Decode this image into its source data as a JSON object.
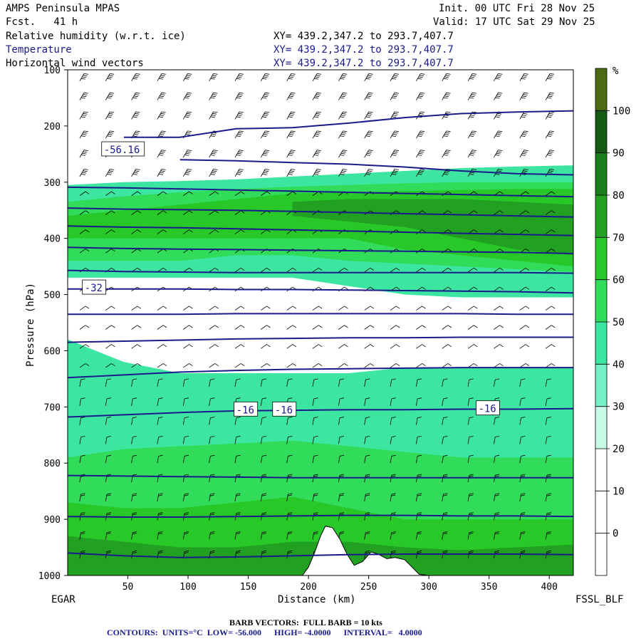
{
  "header": {
    "model": "AMPS Peninsula MPAS",
    "fcst": "Fcst.   41 h",
    "init": "Init. 00 UTC Fri 28 Nov 25",
    "valid": "Valid: 17 UTC Sat 29 Nov 25",
    "fields": [
      {
        "name": "Relative humidity (w.r.t. ice)",
        "xy": "XY= 439.2,347.2 to 293.7,407.7"
      },
      {
        "name": "Temperature",
        "xy": "XY= 439.2,347.2 to 293.7,407.7"
      },
      {
        "name": "Horizontal wind vectors",
        "xy": "XY= 439.2,347.2 to 293.7,407.7"
      }
    ]
  },
  "footer": {
    "left_station": "EGAR",
    "right_station": "FSSL_BLF",
    "barb_note": "BARB VECTORS:  FULL BARB = 10 kts",
    "contour_note": "CONTOURS:  UNITS=°C  LOW= -56.000      HIGH= -4.0000      INTERVAL=   4.0000"
  },
  "colors": {
    "contour": "#1a1a8c",
    "terrain": "#ffffff",
    "rh_bins": [
      "#ffffff",
      "#ffffff",
      "#ffffff",
      "#ffffff",
      "#ffffff",
      "#ffffff",
      "#c8fae6",
      "#78f0c8",
      "#3ce6a0",
      "#30dc5a",
      "#28c828",
      "#22a022",
      "#1b7d1b",
      "#145a14",
      "#4a6a14"
    ]
  },
  "chart_data": {
    "type": "heatmap",
    "xlabel": "Distance (km)",
    "ylabel": "Pressure (hPa)",
    "xlim": [
      0,
      420
    ],
    "ylim": [
      1000,
      100
    ],
    "x_ticks": [
      50,
      100,
      150,
      200,
      250,
      300,
      350,
      400
    ],
    "y_ticks": [
      100,
      200,
      300,
      400,
      500,
      600,
      700,
      800,
      900,
      1000
    ],
    "colorbar": {
      "unit": "%",
      "levels": [
        0,
        10,
        20,
        30,
        40,
        50,
        60,
        70,
        80,
        90,
        100
      ]
    },
    "temperature_contours": [
      {
        "label": "-56.16",
        "p": [
          null,
          220,
          220,
          205,
          203,
          195,
          185,
          178,
          175,
          173
        ]
      },
      {
        "label": "",
        "p": [
          null,
          null,
          260,
          262,
          265,
          268,
          273,
          280,
          285,
          287
        ]
      },
      {
        "label": "",
        "p": [
          309,
          310,
          312,
          314,
          316,
          318,
          320,
          322,
          324,
          326
        ]
      },
      {
        "label": "",
        "p": [
          346,
          348,
          349,
          350,
          352,
          354,
          356,
          358,
          360,
          362
        ]
      },
      {
        "label": "",
        "p": [
          378,
          380,
          381,
          383,
          385,
          387,
          389,
          391,
          393,
          395
        ]
      },
      {
        "label": "",
        "p": [
          416,
          418,
          419,
          420,
          421,
          422,
          423,
          424,
          425,
          427
        ]
      },
      {
        "label": "",
        "p": [
          457,
          459,
          460,
          461,
          461,
          461,
          461,
          461,
          461,
          462
        ]
      },
      {
        "label": "-32",
        "p": [
          490,
          490,
          490,
          491,
          491,
          492,
          493,
          494,
          495,
          497
        ]
      },
      {
        "label": "",
        "p": [
          535,
          535,
          535,
          534,
          534,
          534,
          534,
          534,
          535,
          535
        ]
      },
      {
        "label": "",
        "p": [
          585,
          583,
          581,
          579,
          578,
          577,
          577,
          576,
          576,
          576
        ]
      },
      {
        "label": "",
        "p": [
          648,
          643,
          638,
          635,
          633,
          632,
          631,
          630,
          630,
          630
        ]
      },
      {
        "label": "-16",
        "p": [
          718,
          714,
          710,
          707,
          706,
          705,
          705,
          704,
          704,
          703
        ]
      },
      {
        "label": "",
        "p": [
          822,
          823,
          824,
          825,
          826,
          826,
          826,
          826,
          826,
          826
        ]
      },
      {
        "label": "",
        "p": [
          895,
          896,
          896,
          895,
          894,
          893,
          893,
          894,
          894,
          895
        ]
      },
      {
        "label": "",
        "p": [
          960,
          965,
          968,
          967,
          965,
          963,
          962,
          962,
          962,
          963
        ]
      }
    ],
    "contour_labels": [
      {
        "text": "-56.16",
        "x": 30,
        "p": 242
      },
      {
        "text": "-32",
        "x": 14,
        "p": 488
      },
      {
        "text": "-16",
        "x": 140,
        "p": 705
      },
      {
        "text": "-16",
        "x": 172,
        "p": 705
      },
      {
        "text": "-16",
        "x": 341,
        "p": 703
      }
    ],
    "terrain": [
      [
        195,
        1000
      ],
      [
        200,
        985
      ],
      [
        205,
        960
      ],
      [
        210,
        930
      ],
      [
        214,
        912
      ],
      [
        220,
        915
      ],
      [
        226,
        935
      ],
      [
        232,
        962
      ],
      [
        238,
        982
      ],
      [
        245,
        975
      ],
      [
        252,
        958
      ],
      [
        258,
        962
      ],
      [
        265,
        970
      ],
      [
        272,
        968
      ],
      [
        280,
        972
      ],
      [
        286,
        985
      ],
      [
        292,
        998
      ],
      [
        300,
        1000
      ]
    ],
    "rh_layers": [
      {
        "rh": 35,
        "top": [
          305,
          300,
          298,
          295,
          290,
          285,
          280,
          275,
          272,
          270
        ],
        "bottom": [
          470,
          470,
          470,
          470,
          470,
          485,
          500,
          505,
          505,
          505
        ]
      },
      {
        "rh": 45,
        "top": [
          335,
          325,
          318,
          312,
          308,
          305,
          302,
          300,
          300,
          300
        ],
        "bottom": [
          440,
          440,
          440,
          430,
          430,
          440,
          445,
          450,
          455,
          460
        ]
      },
      {
        "rh": 55,
        "top": [
          360,
          350,
          340,
          330,
          320,
          318,
          316,
          314,
          312,
          312
        ],
        "bottom": [
          400,
          400,
          400,
          400,
          400,
          400,
          420,
          430,
          440,
          450
        ]
      },
      {
        "rh": 65,
        "top": [
          null,
          null,
          null,
          null,
          335,
          330,
          330,
          330,
          335,
          340
        ],
        "bottom": [
          null,
          null,
          null,
          null,
          360,
          370,
          380,
          400,
          420,
          430
        ]
      },
      {
        "rh": 35,
        "top": [
          580,
          620,
          640,
          640,
          640,
          640,
          630,
          630,
          630,
          630
        ],
        "bottom": [
          1000,
          1000,
          1000,
          1000,
          1000,
          1000,
          1000,
          1000,
          1000,
          1000
        ]
      },
      {
        "rh": 45,
        "top": [
          790,
          775,
          770,
          765,
          760,
          770,
          780,
          790,
          790,
          790
        ],
        "bottom": [
          1000,
          1000,
          1000,
          1000,
          1000,
          1000,
          1000,
          1000,
          1000,
          1000
        ]
      },
      {
        "rh": 55,
        "top": [
          870,
          880,
          880,
          870,
          860,
          880,
          900,
          900,
          900,
          900
        ],
        "bottom": [
          1000,
          1000,
          1000,
          1000,
          1000,
          1000,
          1000,
          1000,
          1000,
          1000
        ]
      },
      {
        "rh": 65,
        "top": [
          930,
          940,
          950,
          950,
          940,
          940,
          950,
          955,
          950,
          945
        ],
        "bottom": [
          1000,
          1000,
          1000,
          1000,
          1000,
          1000,
          1000,
          1000,
          1000,
          1000
        ]
      }
    ]
  }
}
